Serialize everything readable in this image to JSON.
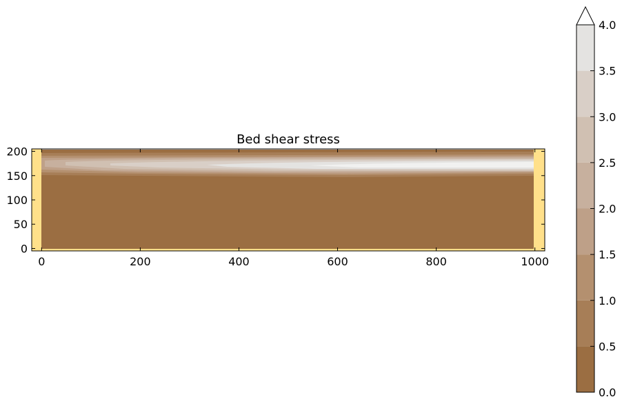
{
  "chart_data": {
    "type": "heatmap",
    "title": "Bed shear stress",
    "xlabel": "",
    "ylabel": "",
    "xlim": [
      -20,
      1020
    ],
    "ylim": [
      -5,
      205
    ],
    "xticks": [
      0,
      200,
      400,
      600,
      800,
      1000
    ],
    "yticks": [
      0,
      50,
      100,
      150,
      200
    ],
    "grid": false,
    "domain": {
      "x": [
        0,
        1000
      ],
      "y": [
        0,
        200
      ]
    },
    "fill_color_outside_domain": "#ffe08a",
    "colorbar": {
      "levels": [
        0.0,
        0.5,
        1.0,
        1.5,
        2.0,
        2.5,
        3.0,
        3.5,
        4.0
      ],
      "tick_labels": [
        "0.0",
        "0.5",
        "1.0",
        "1.5",
        "2.0",
        "2.5",
        "3.0",
        "3.5",
        "4.0"
      ],
      "extend": "max",
      "colors": [
        "#9b6e42",
        "#a77e57",
        "#b4906f",
        "#bea088",
        "#c7b09e",
        "#d0c0b2",
        "#d9cfc7",
        "#e4e3e1"
      ],
      "extend_color": "#ffffff",
      "placement": "right"
    },
    "field": {
      "description_levels": [
        {
          "y_range": [
            0,
            150
          ],
          "value": 0.3
        },
        {
          "y_range": [
            150,
            158
          ],
          "value": 0.8
        },
        {
          "y_range": [
            158,
            185
          ],
          "value": "up to 4.0 (jet along channel, peaks downstream)"
        },
        {
          "y_range": [
            185,
            200
          ],
          "value": 0.4
        }
      ]
    }
  }
}
